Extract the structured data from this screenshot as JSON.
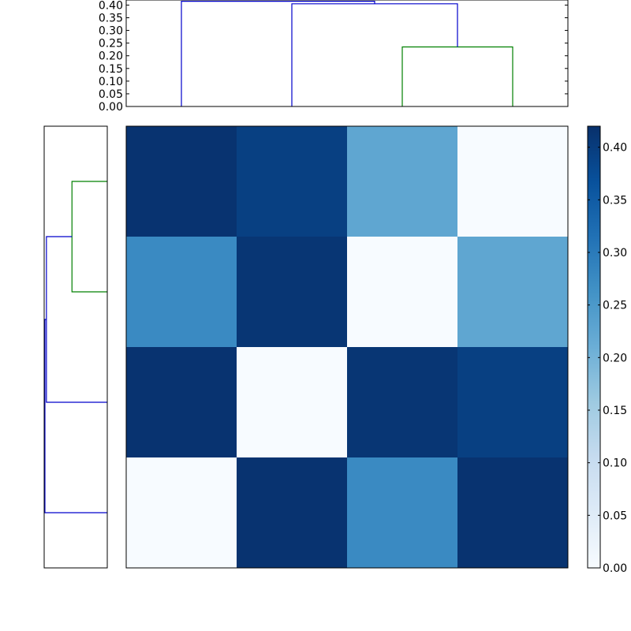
{
  "chart_data": [
    {
      "type": "dendrogram",
      "orientation": "top",
      "ylim": [
        0,
        0.42
      ],
      "yticks": [
        0.0,
        0.05,
        0.1,
        0.15,
        0.2,
        0.25,
        0.3,
        0.35,
        0.4
      ],
      "ytick_labels": [
        "0.00",
        "0.05",
        "0.10",
        "0.15",
        "0.20",
        "0.25",
        "0.30",
        "0.35",
        "0.40"
      ],
      "leaves": 4,
      "links": [
        {
          "cluster": "leaf3+leaf4",
          "height": 0.235,
          "color": "#008000"
        },
        {
          "cluster": "leaf2+(leaf3,leaf4)",
          "height": 0.405,
          "color": "#0000cc"
        },
        {
          "cluster": "leaf1+(leaf2,leaf3,leaf4)",
          "height": 0.415,
          "color": "#0000cc"
        }
      ]
    },
    {
      "type": "dendrogram",
      "orientation": "left",
      "leaves": 4,
      "links": [
        {
          "cluster": "row1+row2",
          "height": 0.235,
          "color": "#008000"
        },
        {
          "cluster": "row3+(row1,row2)",
          "height": 0.405,
          "color": "#0000cc"
        },
        {
          "cluster": "row4+(row1,row2,row3)",
          "height": 0.415,
          "color": "#0000cc"
        }
      ]
    },
    {
      "type": "heatmap",
      "rows": 4,
      "cols": 4,
      "values": [
        [
          0.415,
          0.395,
          0.225,
          0.0
        ],
        [
          0.275,
          0.41,
          0.0,
          0.225
        ],
        [
          0.415,
          0.0,
          0.41,
          0.395
        ],
        [
          0.0,
          0.415,
          0.275,
          0.415
        ]
      ],
      "colormap": "Blues",
      "vmin": 0.0,
      "vmax": 0.42,
      "colorbar_ticks": [
        0.0,
        0.05,
        0.1,
        0.15,
        0.2,
        0.25,
        0.3,
        0.35,
        0.4
      ],
      "colorbar_tick_labels": [
        "0.00",
        "0.05",
        "0.10",
        "0.15",
        "0.20",
        "0.25",
        "0.30",
        "0.35",
        "0.40"
      ]
    }
  ]
}
